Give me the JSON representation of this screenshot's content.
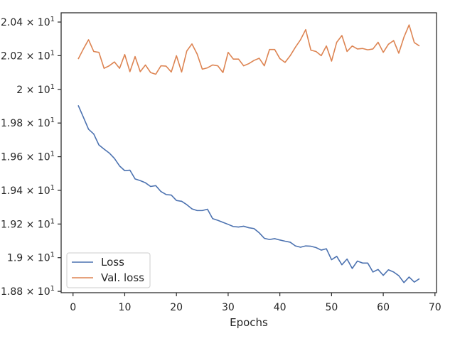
{
  "chart_data": {
    "type": "line",
    "xlabel": "Epochs",
    "ylabel": "",
    "xlim": [
      -2.3,
      70.3
    ],
    "ylim": [
      18.792,
      20.455
    ],
    "x_ticks": [
      0,
      10,
      20,
      30,
      40,
      50,
      60,
      70
    ],
    "x_tick_labels": [
      "0",
      "10",
      "20",
      "30",
      "40",
      "50",
      "60",
      "70"
    ],
    "y_ticks": [
      18.8,
      19.0,
      19.2,
      19.4,
      19.6,
      19.8,
      20.0,
      20.2,
      20.4
    ],
    "y_tick_labels": [
      {
        "mantissa": "1.88",
        "exp": "1"
      },
      {
        "mantissa": "1.9",
        "exp": "1"
      },
      {
        "mantissa": "1.92",
        "exp": "1"
      },
      {
        "mantissa": "1.94",
        "exp": "1"
      },
      {
        "mantissa": "1.96",
        "exp": "1"
      },
      {
        "mantissa": "1.98",
        "exp": "1"
      },
      {
        "mantissa": "2",
        "exp": "1"
      },
      {
        "mantissa": "2.02",
        "exp": "1"
      },
      {
        "mantissa": "2.04",
        "exp": "1"
      }
    ],
    "grid": false,
    "legend_position": "lower-left",
    "x": [
      1,
      2,
      3,
      4,
      5,
      6,
      7,
      8,
      9,
      10,
      11,
      12,
      13,
      14,
      15,
      16,
      17,
      18,
      19,
      20,
      21,
      22,
      23,
      24,
      25,
      26,
      27,
      28,
      29,
      30,
      31,
      32,
      33,
      34,
      35,
      36,
      37,
      38,
      39,
      40,
      41,
      42,
      43,
      44,
      45,
      46,
      47,
      48,
      49,
      50,
      51,
      52,
      53,
      54,
      55,
      56,
      57,
      58,
      59,
      60,
      61,
      62,
      63,
      64,
      65,
      66,
      67
    ],
    "series": [
      {
        "name": "Loss",
        "color": "#4c72b0",
        "values": [
          19.905,
          19.835,
          19.763,
          19.735,
          19.67,
          19.645,
          19.622,
          19.59,
          19.545,
          19.517,
          19.52,
          19.468,
          19.458,
          19.445,
          19.423,
          19.428,
          19.393,
          19.375,
          19.372,
          19.34,
          19.335,
          19.315,
          19.29,
          19.28,
          19.28,
          19.288,
          19.232,
          19.222,
          19.21,
          19.198,
          19.185,
          19.182,
          19.187,
          19.178,
          19.173,
          19.148,
          19.115,
          19.108,
          19.113,
          19.105,
          19.098,
          19.092,
          19.07,
          19.062,
          19.07,
          19.068,
          19.06,
          19.045,
          19.053,
          18.988,
          19.008,
          18.958,
          18.992,
          18.936,
          18.98,
          18.968,
          18.968,
          18.915,
          18.93,
          18.895,
          18.928,
          18.915,
          18.893,
          18.852,
          18.885,
          18.855,
          18.875
        ]
      },
      {
        "name": "Val. loss",
        "color": "#dd8452",
        "values": [
          20.18,
          20.24,
          20.295,
          20.225,
          20.22,
          20.125,
          20.14,
          20.163,
          20.125,
          20.207,
          20.105,
          20.195,
          20.105,
          20.145,
          20.1,
          20.09,
          20.14,
          20.138,
          20.103,
          20.2,
          20.103,
          20.228,
          20.27,
          20.21,
          20.12,
          20.128,
          20.145,
          20.14,
          20.1,
          20.22,
          20.18,
          20.18,
          20.14,
          20.153,
          20.172,
          20.185,
          20.14,
          20.237,
          20.237,
          20.183,
          20.16,
          20.2,
          20.25,
          20.295,
          20.355,
          20.233,
          20.225,
          20.2,
          20.258,
          20.168,
          20.28,
          20.32,
          20.225,
          20.258,
          20.24,
          20.243,
          20.235,
          20.24,
          20.28,
          20.22,
          20.268,
          20.29,
          20.215,
          20.31,
          20.383,
          20.278,
          20.258
        ]
      }
    ]
  }
}
